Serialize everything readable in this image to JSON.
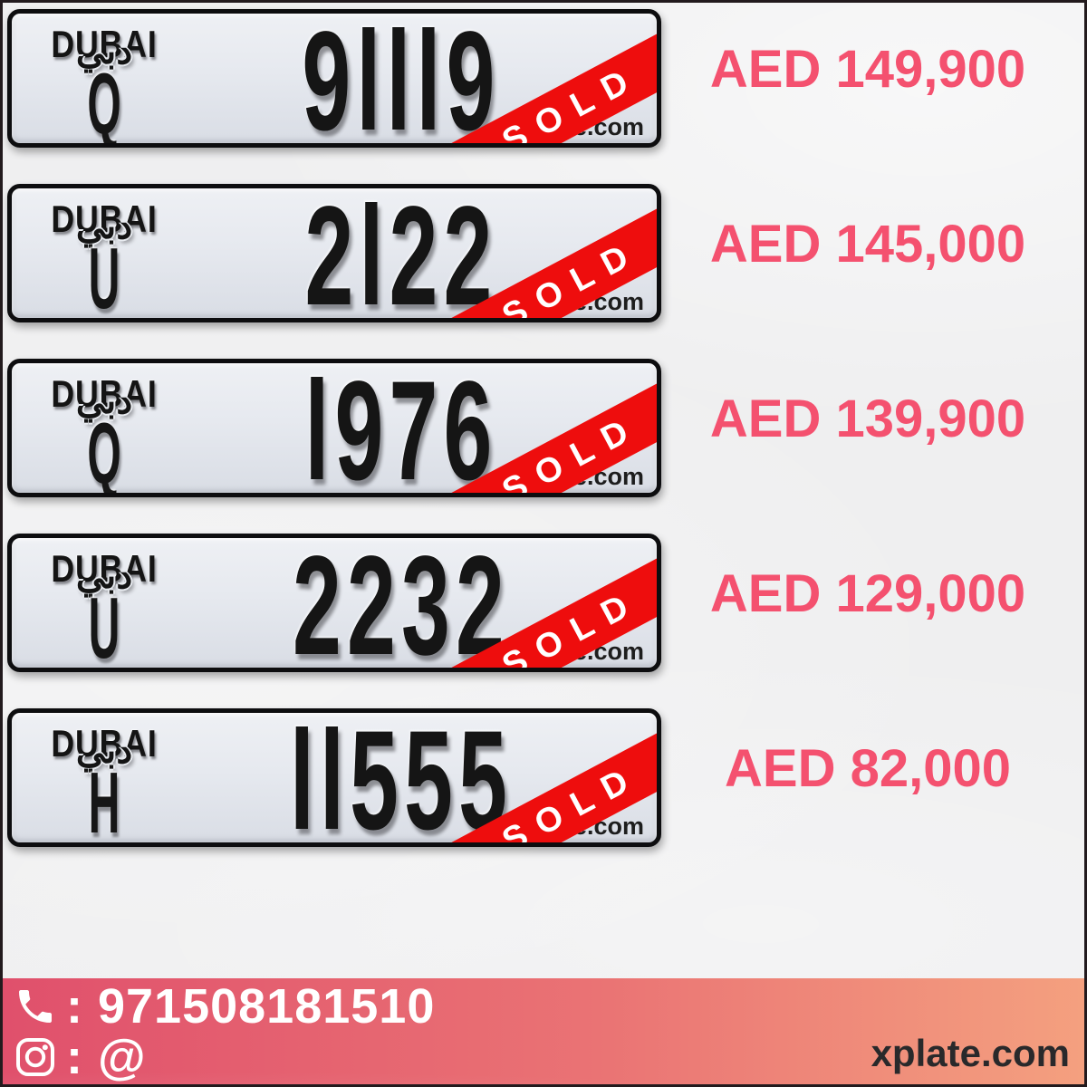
{
  "listings": [
    {
      "emirate": "DUBAI",
      "emirate_arabic": "دبي",
      "code": "Q",
      "number": "91119",
      "price": "AED 149,900",
      "status": "SOLD",
      "watermark": "xplate.com"
    },
    {
      "emirate": "DUBAI",
      "emirate_arabic": "دبي",
      "code": "U",
      "number": "2122",
      "price": "AED 145,000",
      "status": "SOLD",
      "watermark": "xplate.com"
    },
    {
      "emirate": "DUBAI",
      "emirate_arabic": "دبي",
      "code": "Q",
      "number": "1976",
      "price": "AED 139,900",
      "status": "SOLD",
      "watermark": "xplate.com"
    },
    {
      "emirate": "DUBAI",
      "emirate_arabic": "دبي",
      "code": "U",
      "number": "2232",
      "price": "AED 129,000",
      "status": "SOLD",
      "watermark": "xplate.com"
    },
    {
      "emirate": "DUBAI",
      "emirate_arabic": "دبي",
      "code": "H",
      "number": "11555",
      "price": "AED 82,000",
      "status": "SOLD",
      "watermark": "xplate.com"
    }
  ],
  "footer": {
    "phone_icon": "phone-icon",
    "phone": ": 971508181510",
    "instagram_icon": "instagram-icon",
    "instagram": ": @",
    "website": "xplate.com"
  },
  "colors": {
    "price": "#f4516f",
    "ribbon": "#ee0d0d",
    "plate_face": "#e6e9ef",
    "footer_gradient_left": "#e0506c",
    "footer_gradient_right": "#f4a07f",
    "footer_text": "#ffffff",
    "website_text": "#29292b"
  }
}
